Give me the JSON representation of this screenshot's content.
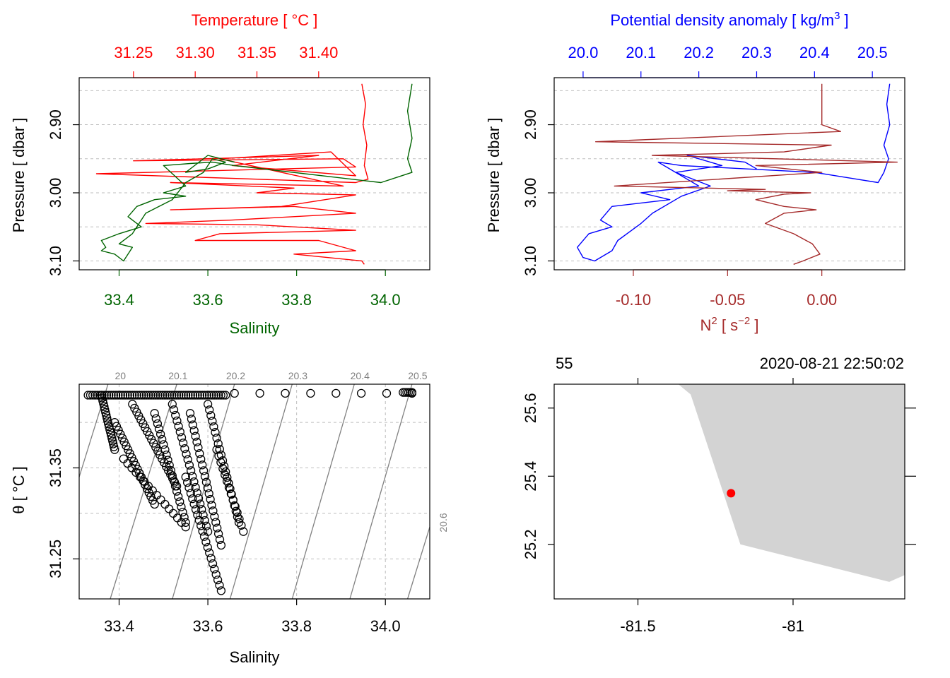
{
  "colors": {
    "temperature": "#ff0000",
    "salinity": "#006400",
    "density": "#0000ff",
    "n2": "#a52a2a",
    "grid": "#bebebe",
    "isopycnal": "#808080",
    "land": "#d3d3d3",
    "station": "#ff0000",
    "axis": "#000000"
  },
  "chart_data": [
    {
      "type": "line",
      "panel": "profile-temperature-salinity",
      "title": "",
      "top_axis": {
        "label": "Temperature [ °C ]",
        "range": [
          31.206,
          31.49
        ],
        "ticks": [
          "31.25",
          "31.30",
          "31.35",
          "31.40"
        ],
        "tick_values": [
          31.25,
          31.3,
          31.35,
          31.4
        ],
        "color": "#ff0000"
      },
      "bottom_axis": {
        "label": "Salinity",
        "range": [
          33.31,
          34.1
        ],
        "ticks": [
          "33.4",
          "33.6",
          "33.8",
          "34.0"
        ],
        "tick_values": [
          33.4,
          33.6,
          33.8,
          34.0
        ],
        "color": "#006400"
      },
      "y_axis": {
        "label": "Pressure [ dbar ]",
        "range": [
          3.113,
          2.831
        ],
        "reversed": true,
        "ticks": [
          "2.90",
          "3.00",
          "3.10"
        ],
        "tick_values": [
          2.9,
          3.0,
          3.1
        ],
        "grid_values": [
          2.85,
          2.9,
          2.95,
          3.0,
          3.05,
          3.1
        ]
      },
      "grid": true,
      "series": [
        {
          "name": "Temperature",
          "color": "#ff0000",
          "values": [
            [
              31.435,
              2.84
            ],
            [
              31.438,
              2.87
            ],
            [
              31.436,
              2.9
            ],
            [
              31.439,
              2.93
            ],
            [
              31.437,
              2.96
            ],
            [
              31.44,
              2.98
            ],
            [
              31.43,
              2.985
            ],
            [
              31.22,
              2.972
            ],
            [
              31.43,
              2.962
            ],
            [
              31.42,
              2.95
            ],
            [
              31.25,
              2.953
            ],
            [
              31.4,
              2.945
            ],
            [
              31.33,
              2.96
            ],
            [
              31.43,
              2.975
            ],
            [
              31.41,
              2.94
            ],
            [
              31.32,
              2.95
            ],
            [
              31.42,
              2.99
            ],
            [
              31.28,
              2.985
            ],
            [
              31.38,
              2.993
            ],
            [
              31.35,
              3.0
            ],
            [
              31.43,
              3.003
            ],
            [
              31.37,
              3.02
            ],
            [
              31.28,
              3.025
            ],
            [
              31.38,
              3.02
            ],
            [
              31.43,
              3.03
            ],
            [
              31.33,
              3.04
            ],
            [
              31.26,
              3.045
            ],
            [
              31.35,
              3.047
            ],
            [
              31.43,
              3.055
            ],
            [
              31.32,
              3.06
            ],
            [
              31.3,
              3.07
            ],
            [
              31.4,
              3.07
            ],
            [
              31.43,
              3.085
            ],
            [
              31.38,
              3.09
            ],
            [
              31.435,
              3.1
            ],
            [
              31.437,
              3.105
            ]
          ]
        },
        {
          "name": "Salinity",
          "color": "#006400",
          "values": [
            [
              34.06,
              2.84
            ],
            [
              34.05,
              2.88
            ],
            [
              34.06,
              2.92
            ],
            [
              34.05,
              2.95
            ],
            [
              34.06,
              2.97
            ],
            [
              33.99,
              2.985
            ],
            [
              33.66,
              2.96
            ],
            [
              33.61,
              2.955
            ],
            [
              33.56,
              2.957
            ],
            [
              33.5,
              2.96
            ],
            [
              33.55,
              2.99
            ],
            [
              33.5,
              3.0
            ],
            [
              33.55,
              3.005
            ],
            [
              33.48,
              3.01
            ],
            [
              33.44,
              3.02
            ],
            [
              33.42,
              3.035
            ],
            [
              33.45,
              3.05
            ],
            [
              33.4,
              3.06
            ],
            [
              33.36,
              3.07
            ],
            [
              33.37,
              3.08
            ],
            [
              33.36,
              3.085
            ],
            [
              33.39,
              3.09
            ],
            [
              33.41,
              3.1
            ],
            [
              33.43,
              3.08
            ],
            [
              33.4,
              3.075
            ],
            [
              33.43,
              3.06
            ],
            [
              33.46,
              3.03
            ],
            [
              33.49,
              3.02
            ],
            [
              33.52,
              3.01
            ],
            [
              33.55,
              2.985
            ],
            [
              33.59,
              2.97
            ],
            [
              33.61,
              2.95
            ],
            [
              33.64,
              2.955
            ],
            [
              33.6,
              2.965
            ],
            [
              33.55,
              2.97
            ],
            [
              33.6,
              2.945
            ],
            [
              33.66,
              2.955
            ]
          ]
        }
      ]
    },
    {
      "type": "line",
      "panel": "profile-density-n2",
      "title": "",
      "top_axis": {
        "label": "Potential density anomaly [ kg/m",
        "label_sup": "3",
        "label_end": " ]",
        "range": [
          19.95,
          20.556
        ],
        "ticks": [
          "20.0",
          "20.1",
          "20.2",
          "20.3",
          "20.4",
          "20.5"
        ],
        "tick_values": [
          20.0,
          20.1,
          20.2,
          20.3,
          20.4,
          20.5
        ],
        "color": "#0000ff"
      },
      "bottom_axis": {
        "label": "N",
        "label_sup": "2",
        "label_end": " [ s",
        "label_sup2": "−2",
        "label_end2": " ]",
        "range": [
          -0.142,
          0.044
        ],
        "ticks": [
          "-0.10",
          "-0.05",
          "0.00"
        ],
        "tick_values": [
          -0.1,
          -0.05,
          0.0
        ],
        "color": "#a52a2a"
      },
      "y_axis": {
        "label": "Pressure [ dbar ]",
        "range": [
          3.113,
          2.831
        ],
        "reversed": true,
        "ticks": [
          "2.90",
          "3.00",
          "3.10"
        ],
        "tick_values": [
          2.9,
          3.0,
          3.1
        ],
        "grid_values": [
          2.85,
          2.9,
          2.95,
          3.0,
          3.05,
          3.1
        ]
      },
      "grid": true,
      "series": [
        {
          "name": "Potential density anomaly",
          "color": "#0000ff",
          "values": [
            [
              20.53,
              2.84
            ],
            [
              20.525,
              2.87
            ],
            [
              20.53,
              2.9
            ],
            [
              20.52,
              2.93
            ],
            [
              20.528,
              2.95
            ],
            [
              20.52,
              2.97
            ],
            [
              20.51,
              2.985
            ],
            [
              20.4,
              2.97
            ],
            [
              20.17,
              2.96
            ],
            [
              20.13,
              2.955
            ],
            [
              20.2,
              2.99
            ],
            [
              20.1,
              3.0
            ],
            [
              20.15,
              3.01
            ],
            [
              20.05,
              3.02
            ],
            [
              20.03,
              3.04
            ],
            [
              20.05,
              3.05
            ],
            [
              20.01,
              3.06
            ],
            [
              19.99,
              3.08
            ],
            [
              20.0,
              3.095
            ],
            [
              20.02,
              3.1
            ],
            [
              20.05,
              3.085
            ],
            [
              20.06,
              3.07
            ],
            [
              20.1,
              3.045
            ],
            [
              20.12,
              3.03
            ],
            [
              20.17,
              3.005
            ],
            [
              20.22,
              2.99
            ],
            [
              20.16,
              2.97
            ],
            [
              20.24,
              2.96
            ],
            [
              20.18,
              2.945
            ],
            [
              20.28,
              2.955
            ],
            [
              20.3,
              2.965
            ]
          ]
        },
        {
          "name": "N2",
          "color": "#a52a2a",
          "values": [
            [
              0.0,
              2.84
            ],
            [
              0.0,
              2.87
            ],
            [
              0.0,
              2.9
            ],
            [
              0.01,
              2.91
            ],
            [
              -0.12,
              2.925
            ],
            [
              0.005,
              2.93
            ],
            [
              -0.02,
              2.94
            ],
            [
              -0.09,
              2.945
            ],
            [
              0.04,
              2.955
            ],
            [
              -0.035,
              2.96
            ],
            [
              0.0,
              2.97
            ],
            [
              -0.11,
              2.99
            ],
            [
              -0.03,
              2.995
            ],
            [
              -0.05,
              2.997
            ],
            [
              -0.006,
              3.0
            ],
            [
              -0.02,
              3.002
            ],
            [
              -0.035,
              3.01
            ],
            [
              -0.02,
              3.02
            ],
            [
              -0.003,
              3.025
            ],
            [
              -0.02,
              3.03
            ],
            [
              -0.03,
              3.045
            ],
            [
              -0.015,
              3.06
            ],
            [
              -0.005,
              3.075
            ],
            [
              -0.001,
              3.09
            ],
            [
              -0.01,
              3.1
            ],
            [
              -0.015,
              3.105
            ]
          ]
        }
      ]
    },
    {
      "type": "scatter",
      "panel": "ts-diagram",
      "title": "",
      "x_axis": {
        "label": "Salinity",
        "range": [
          33.31,
          34.1
        ],
        "ticks": [
          "33.4",
          "33.6",
          "33.8",
          "34.0"
        ],
        "tick_values": [
          33.4,
          33.6,
          33.8,
          34.0
        ]
      },
      "y_axis": {
        "label": "θ [ °C ]",
        "range": [
          31.206,
          31.442
        ],
        "ticks": [
          "31.25",
          "31.35"
        ],
        "tick_values": [
          31.25,
          31.35
        ],
        "grid_values": [
          31.25,
          31.3,
          31.35,
          31.4
        ]
      },
      "grid": true,
      "isopycnal_labels": [
        "20",
        "20.1",
        "20.2",
        "20.3",
        "20.4",
        "20.5",
        "20.6"
      ],
      "isopycnal_segments": [
        [
          [
            33.38,
            31.206
          ],
          [
            33.53,
            31.442
          ]
        ],
        [
          [
            33.52,
            31.206
          ],
          [
            33.66,
            31.442
          ]
        ],
        [
          [
            33.65,
            31.206
          ],
          [
            33.79,
            31.442
          ]
        ],
        [
          [
            33.79,
            31.206
          ],
          [
            33.93,
            31.442
          ]
        ],
        [
          [
            33.92,
            31.206
          ],
          [
            34.06,
            31.442
          ]
        ],
        [
          [
            34.05,
            31.206
          ],
          [
            34.1,
            31.285
          ]
        ],
        [
          [
            33.31,
            31.34
          ],
          [
            33.375,
            31.442
          ]
        ]
      ],
      "point_groups": [
        {
          "x_start": 33.33,
          "x_end": 33.64,
          "y": 31.43,
          "n": 60
        },
        {
          "x_start": 33.66,
          "x_end": 34.06,
          "y": 31.432,
          "n": 8
        },
        {
          "x_start": 34.04,
          "x_end": 34.06,
          "y": 31.433,
          "n": 6
        },
        {
          "x_start": 33.36,
          "x_end": 33.39,
          "y_start": 31.43,
          "y_end": 31.37,
          "n": 20
        },
        {
          "x_start": 33.39,
          "x_end": 33.48,
          "y_start": 31.4,
          "y_end": 31.31,
          "n": 22
        },
        {
          "x_start": 33.43,
          "x_end": 33.53,
          "y_start": 31.42,
          "y_end": 31.33,
          "n": 22
        },
        {
          "x_start": 33.48,
          "x_end": 33.55,
          "y_start": 31.41,
          "y_end": 31.29,
          "n": 22
        },
        {
          "x_start": 33.52,
          "x_end": 33.6,
          "y_start": 31.42,
          "y_end": 31.28,
          "n": 24
        },
        {
          "x_start": 33.56,
          "x_end": 33.63,
          "y_start": 31.41,
          "y_end": 31.265,
          "n": 24
        },
        {
          "x_start": 33.6,
          "x_end": 33.67,
          "y_start": 31.42,
          "y_end": 31.29,
          "n": 22
        },
        {
          "x_start": 33.62,
          "x_end": 33.68,
          "y_start": 31.37,
          "y_end": 31.28,
          "n": 14
        },
        {
          "x_start": 33.55,
          "x_end": 33.63,
          "y_start": 31.34,
          "y_end": 31.215,
          "n": 22
        },
        {
          "x_start": 33.41,
          "x_end": 33.55,
          "y_start": 31.36,
          "y_end": 31.285,
          "n": 16
        }
      ]
    },
    {
      "type": "scatter",
      "panel": "station-map",
      "title": "",
      "top_labels": [
        "55",
        "2020-08-21 22:50:02"
      ],
      "x_axis": {
        "label": "",
        "range": [
          -81.77,
          -80.64
        ],
        "ticks": [
          "-81.5",
          "-81"
        ],
        "tick_values": [
          -81.5,
          -81.0
        ],
        "top_tick_values": [
          -81.5,
          -81.0
        ]
      },
      "y_axis": {
        "label": "",
        "range": [
          25.04,
          25.67
        ],
        "ticks": [
          "25.2",
          "25.4",
          "25.6"
        ],
        "tick_values": [
          25.2,
          25.4,
          25.6
        ],
        "right_tick_values": [
          25.2,
          25.4,
          25.6
        ]
      },
      "grid": false,
      "land_polygon": [
        [
          -81.37,
          25.67
        ],
        [
          -81.33,
          25.64
        ],
        [
          -81.17,
          25.2
        ],
        [
          -80.69,
          25.09
        ],
        [
          -80.64,
          25.11
        ],
        [
          -80.64,
          25.67
        ]
      ],
      "station": {
        "lon": -81.2,
        "lat": 25.35
      }
    }
  ]
}
